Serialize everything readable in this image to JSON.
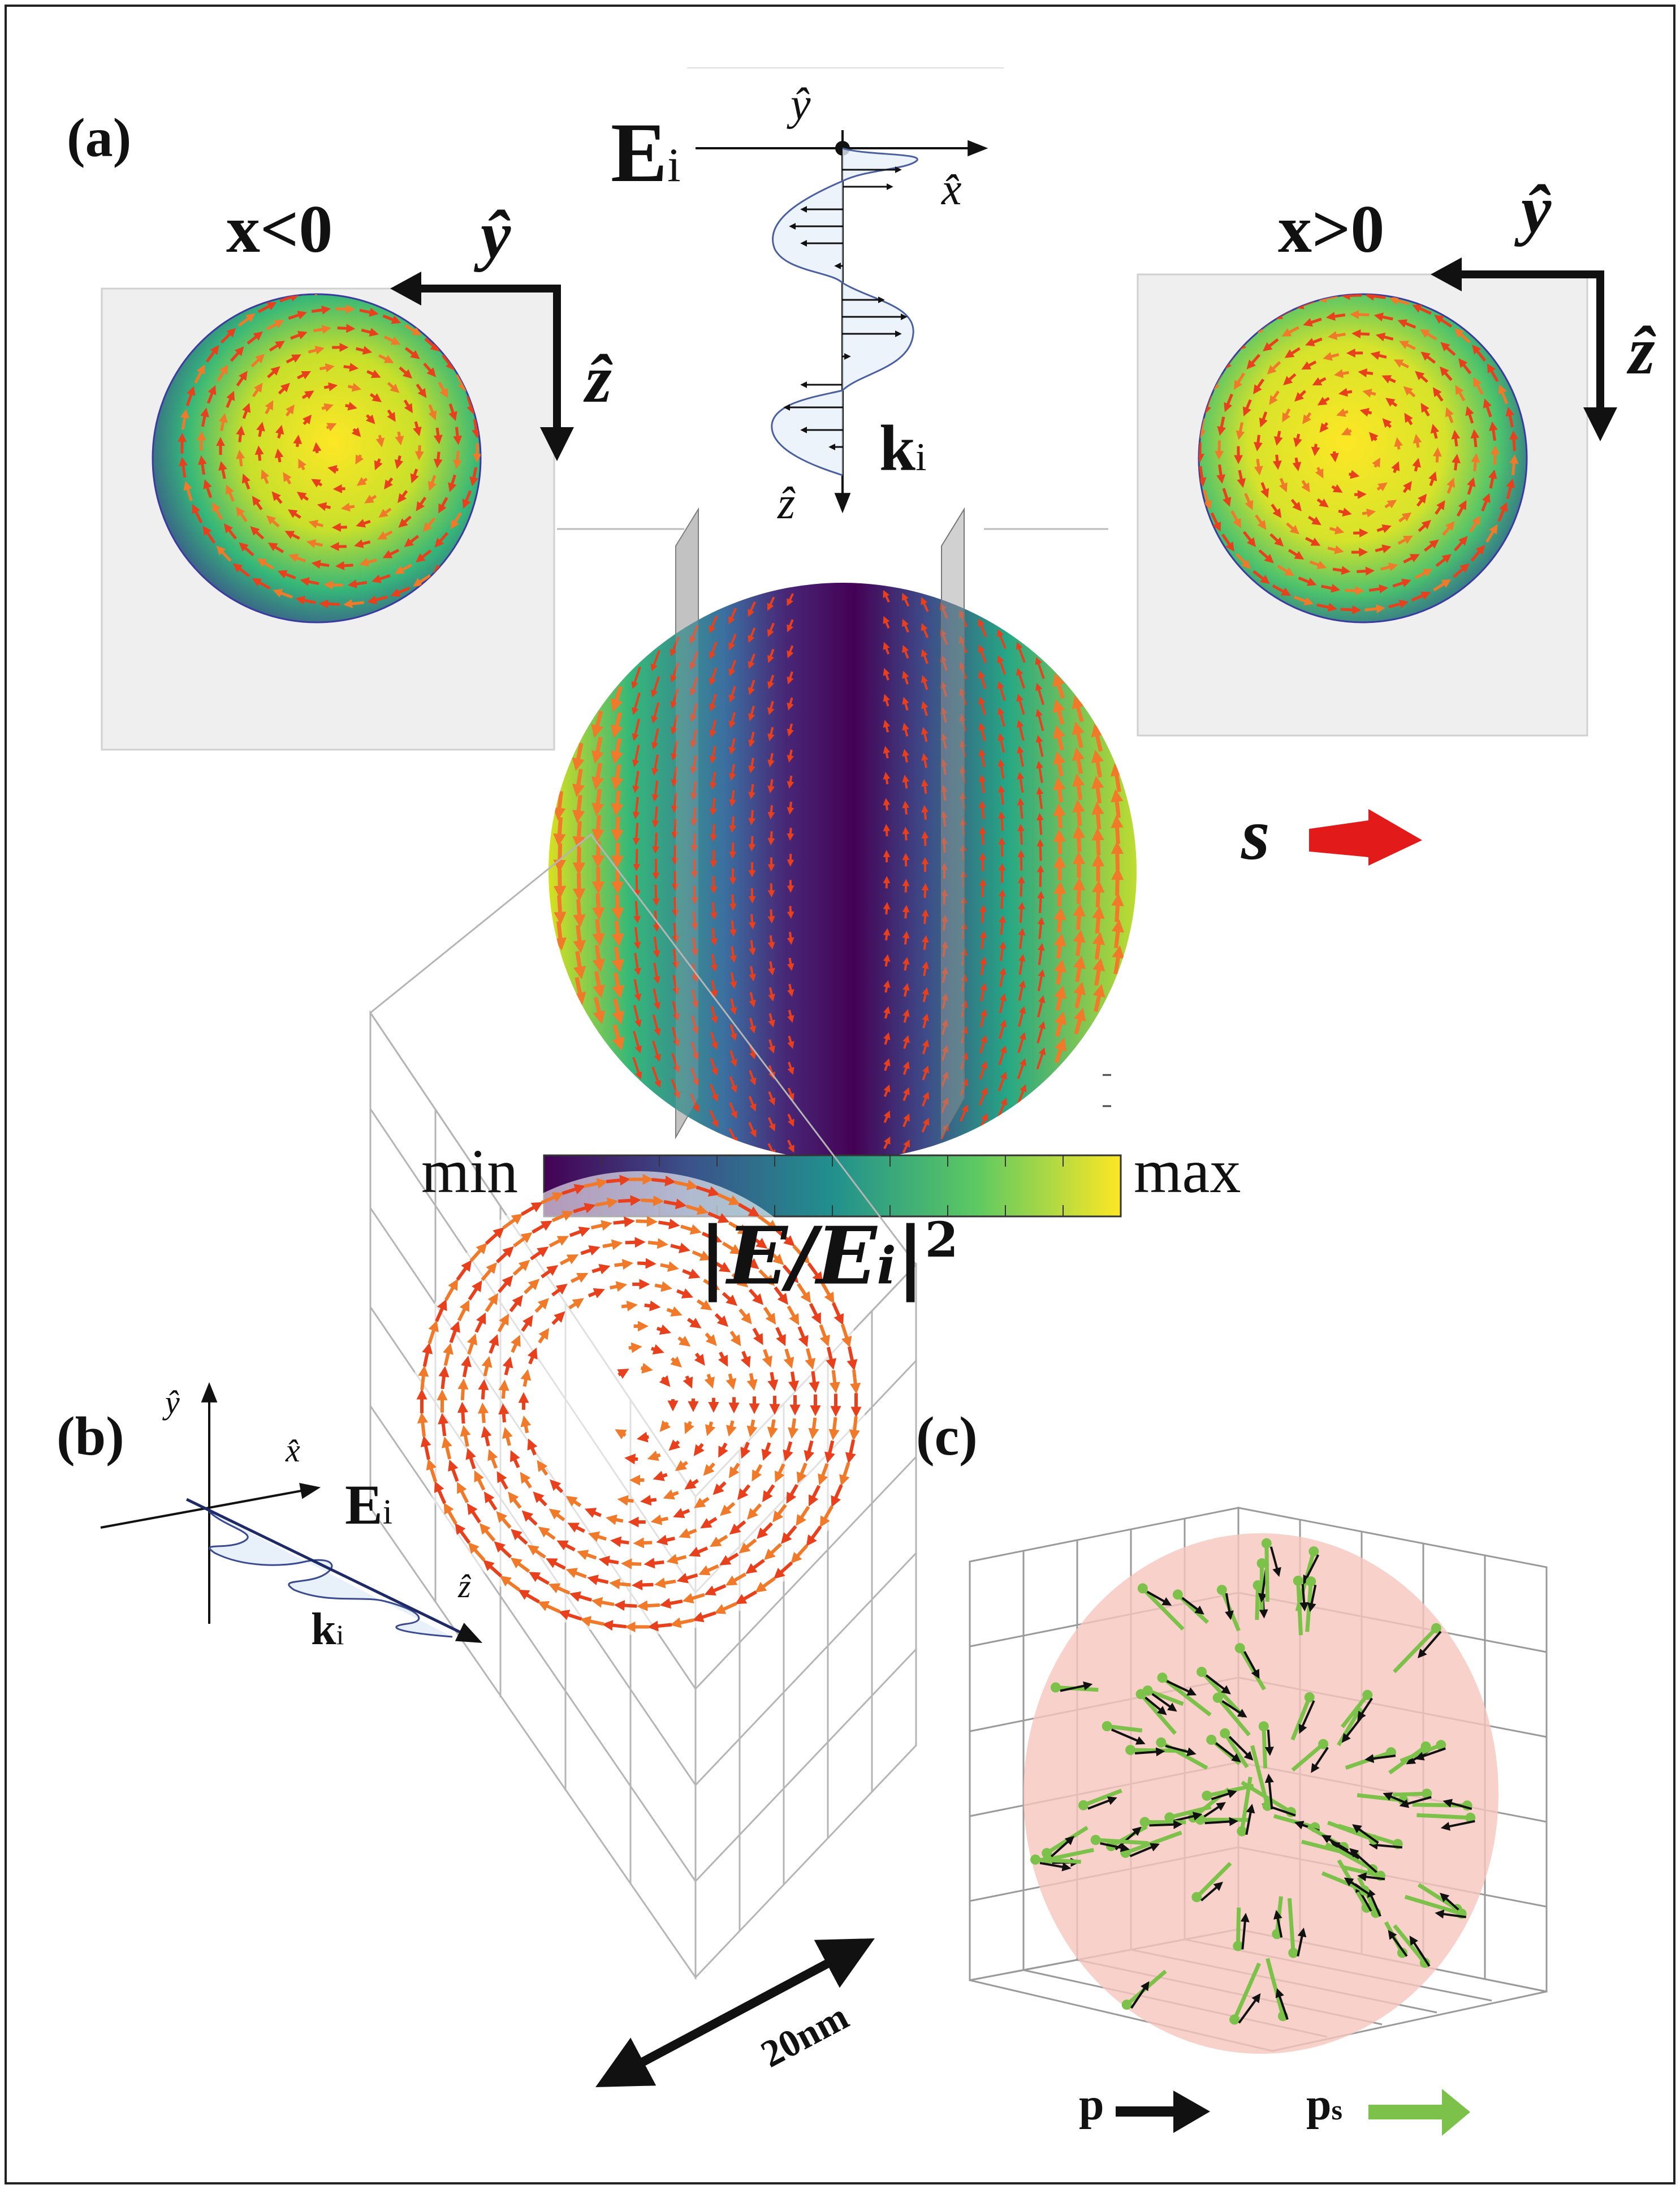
{
  "panels": {
    "a": {
      "label": "(a)",
      "left_region": "x<0",
      "right_region": "x>0",
      "axis_y": "ŷ",
      "axis_z": "ẑ",
      "axis_x": "x̂",
      "incident_field": "E",
      "incident_field_sub": "i",
      "wavevector": "k",
      "wavevector_sub": "i",
      "spin_symbol": "s",
      "colorbar_min": "min",
      "colorbar_max": "max",
      "colorbar_caption": "|E/E",
      "colorbar_caption_sub": "i",
      "colorbar_caption_tail": "|",
      "colorbar_caption_exp": "2"
    },
    "b": {
      "label": "(b)",
      "axis_y": "ŷ",
      "axis_x": "x̂",
      "axis_z": "ẑ",
      "incident_field": "E",
      "incident_field_sub": "i",
      "wavevector": "k",
      "wavevector_sub": "i",
      "scale_bar": "20nm"
    },
    "c": {
      "label": "(c)",
      "legend_p": "p",
      "legend_ps": "p",
      "legend_ps_sub": "s"
    }
  },
  "colors": {
    "arrow_red": "#e8401c",
    "arrow_orange": "#f07a2a",
    "legend_black": "#111111",
    "legend_green": "#7cc24a",
    "sphere_pink": "#f6c7bd",
    "colormap": [
      "#440154",
      "#3b528b",
      "#21908d",
      "#5dc962",
      "#fde725"
    ]
  }
}
